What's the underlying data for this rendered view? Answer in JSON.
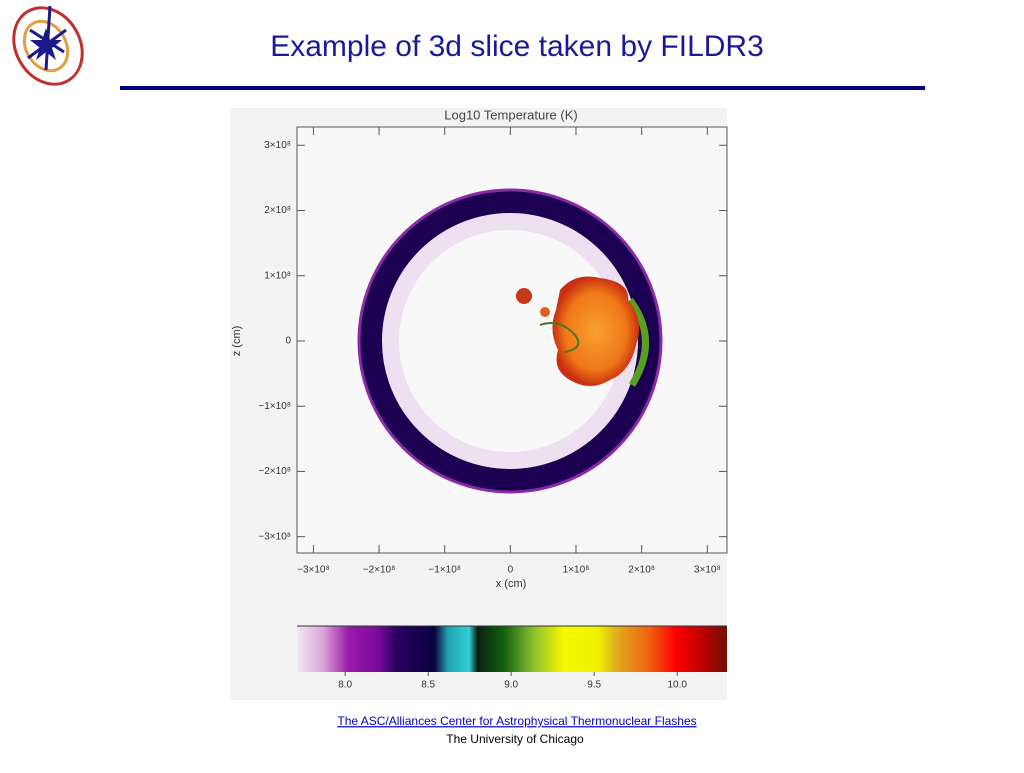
{
  "header": {
    "title": "Example of 3d slice taken by FILDR3"
  },
  "figure": {
    "title": "Log10 Temperature (K)",
    "x_label": "x (cm)",
    "y_label": "z (cm)",
    "xlim": [
      -325000000,
      330000000
    ],
    "ylim": [
      -325000000,
      328000000
    ],
    "xticks": [
      {
        "value": -300000000,
        "label": "−3×10⁸"
      },
      {
        "value": -200000000,
        "label": "−2×10⁸"
      },
      {
        "value": -100000000,
        "label": "−1×10⁸"
      },
      0,
      {
        "value": 100000000,
        "label": "1×10⁸"
      },
      {
        "value": 200000000,
        "label": "2×10⁸"
      },
      {
        "value": 300000000,
        "label": "3×10⁸"
      }
    ],
    "yticks": [
      {
        "value": 300000000,
        "label": "3×10⁸"
      },
      {
        "value": 200000000,
        "label": "2×10⁸"
      },
      {
        "value": 100000000,
        "label": "1×10⁸"
      },
      0,
      {
        "value": -100000000,
        "label": "−1×10⁸"
      },
      {
        "value": -200000000,
        "label": "−2×10⁸"
      },
      {
        "value": -300000000,
        "label": "−3×10⁸"
      }
    ],
    "colorbar": {
      "clim": [
        7.71,
        10.3
      ],
      "ticks": [
        {
          "value": 8.0,
          "label": "8.0"
        },
        {
          "value": 8.5,
          "label": "8.5"
        },
        {
          "value": 9.0,
          "label": "9.0"
        },
        {
          "value": 9.5,
          "label": "9.5"
        },
        {
          "value": 10.0,
          "label": "10.0"
        }
      ]
    }
  },
  "footer": {
    "link": "The ASC/Alliances Center for Astrophysical Thermonuclear Flashes",
    "institution": "The University of Chicago"
  }
}
